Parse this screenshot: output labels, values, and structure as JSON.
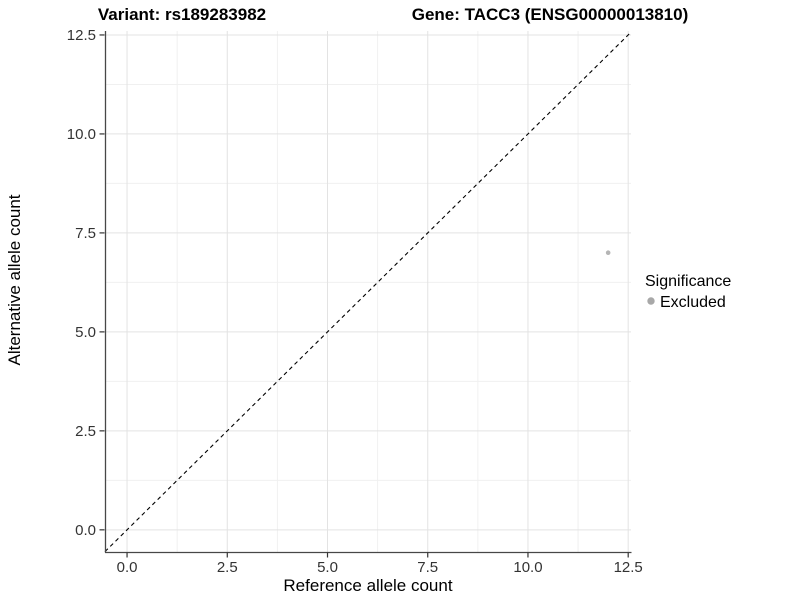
{
  "titles": {
    "variant": "Variant: rs189283982",
    "gene": "Gene: TACC3 (ENSG00000013810)"
  },
  "chart_data": {
    "type": "scatter",
    "title": "Variant: rs189283982    Gene: TACC3 (ENSG00000013810)",
    "xlabel": "Reference allele count",
    "ylabel": "Alternative allele count",
    "xlim": [
      -0.55,
      12.57
    ],
    "ylim": [
      -0.56,
      12.6
    ],
    "x_ticks": [
      0,
      2.5,
      5,
      7.5,
      10,
      12.5
    ],
    "x_tick_labels": [
      "0.0",
      "2.5",
      "5.0",
      "7.5",
      "10.0",
      "12.5"
    ],
    "y_ticks": [
      0,
      2.5,
      5,
      7.5,
      10,
      12.5
    ],
    "y_tick_labels": [
      "0.0",
      "2.5",
      "5.0",
      "7.5",
      "10.0",
      "12.5"
    ],
    "grid": "major-and-minor",
    "identity_line": {
      "type": "y=x",
      "style": "dashed",
      "color": "#000000"
    },
    "series": [
      {
        "name": "Excluded",
        "color": "#b5b5b5",
        "points": [
          {
            "x": 12,
            "y": 7
          }
        ]
      }
    ],
    "legend": {
      "position": "right",
      "title": "Significance",
      "entries": [
        {
          "label": "Excluded",
          "color": "#a8a8a8"
        }
      ]
    },
    "colors": {
      "background": "#ffffff",
      "axis_line": "#474747",
      "tick_mark": "#333333",
      "grid_major": "#e3e3e3",
      "grid_minor": "#f0f0f0",
      "point": "#b5b5b5"
    }
  }
}
